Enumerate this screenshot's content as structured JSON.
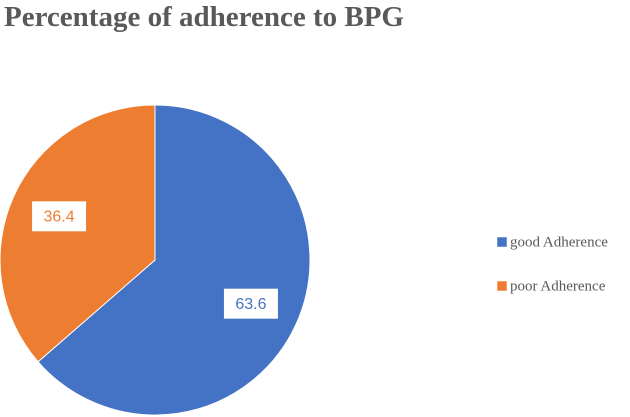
{
  "chart_data": {
    "type": "pie",
    "title": "Percentage of adherence to BPG",
    "series": [
      {
        "name": "good Adherence",
        "color": "#4472c4",
        "values": [
          63.6
        ]
      },
      {
        "name": "poor Adherence",
        "color": "#ed7d31",
        "values": [
          36.4
        ]
      }
    ]
  }
}
